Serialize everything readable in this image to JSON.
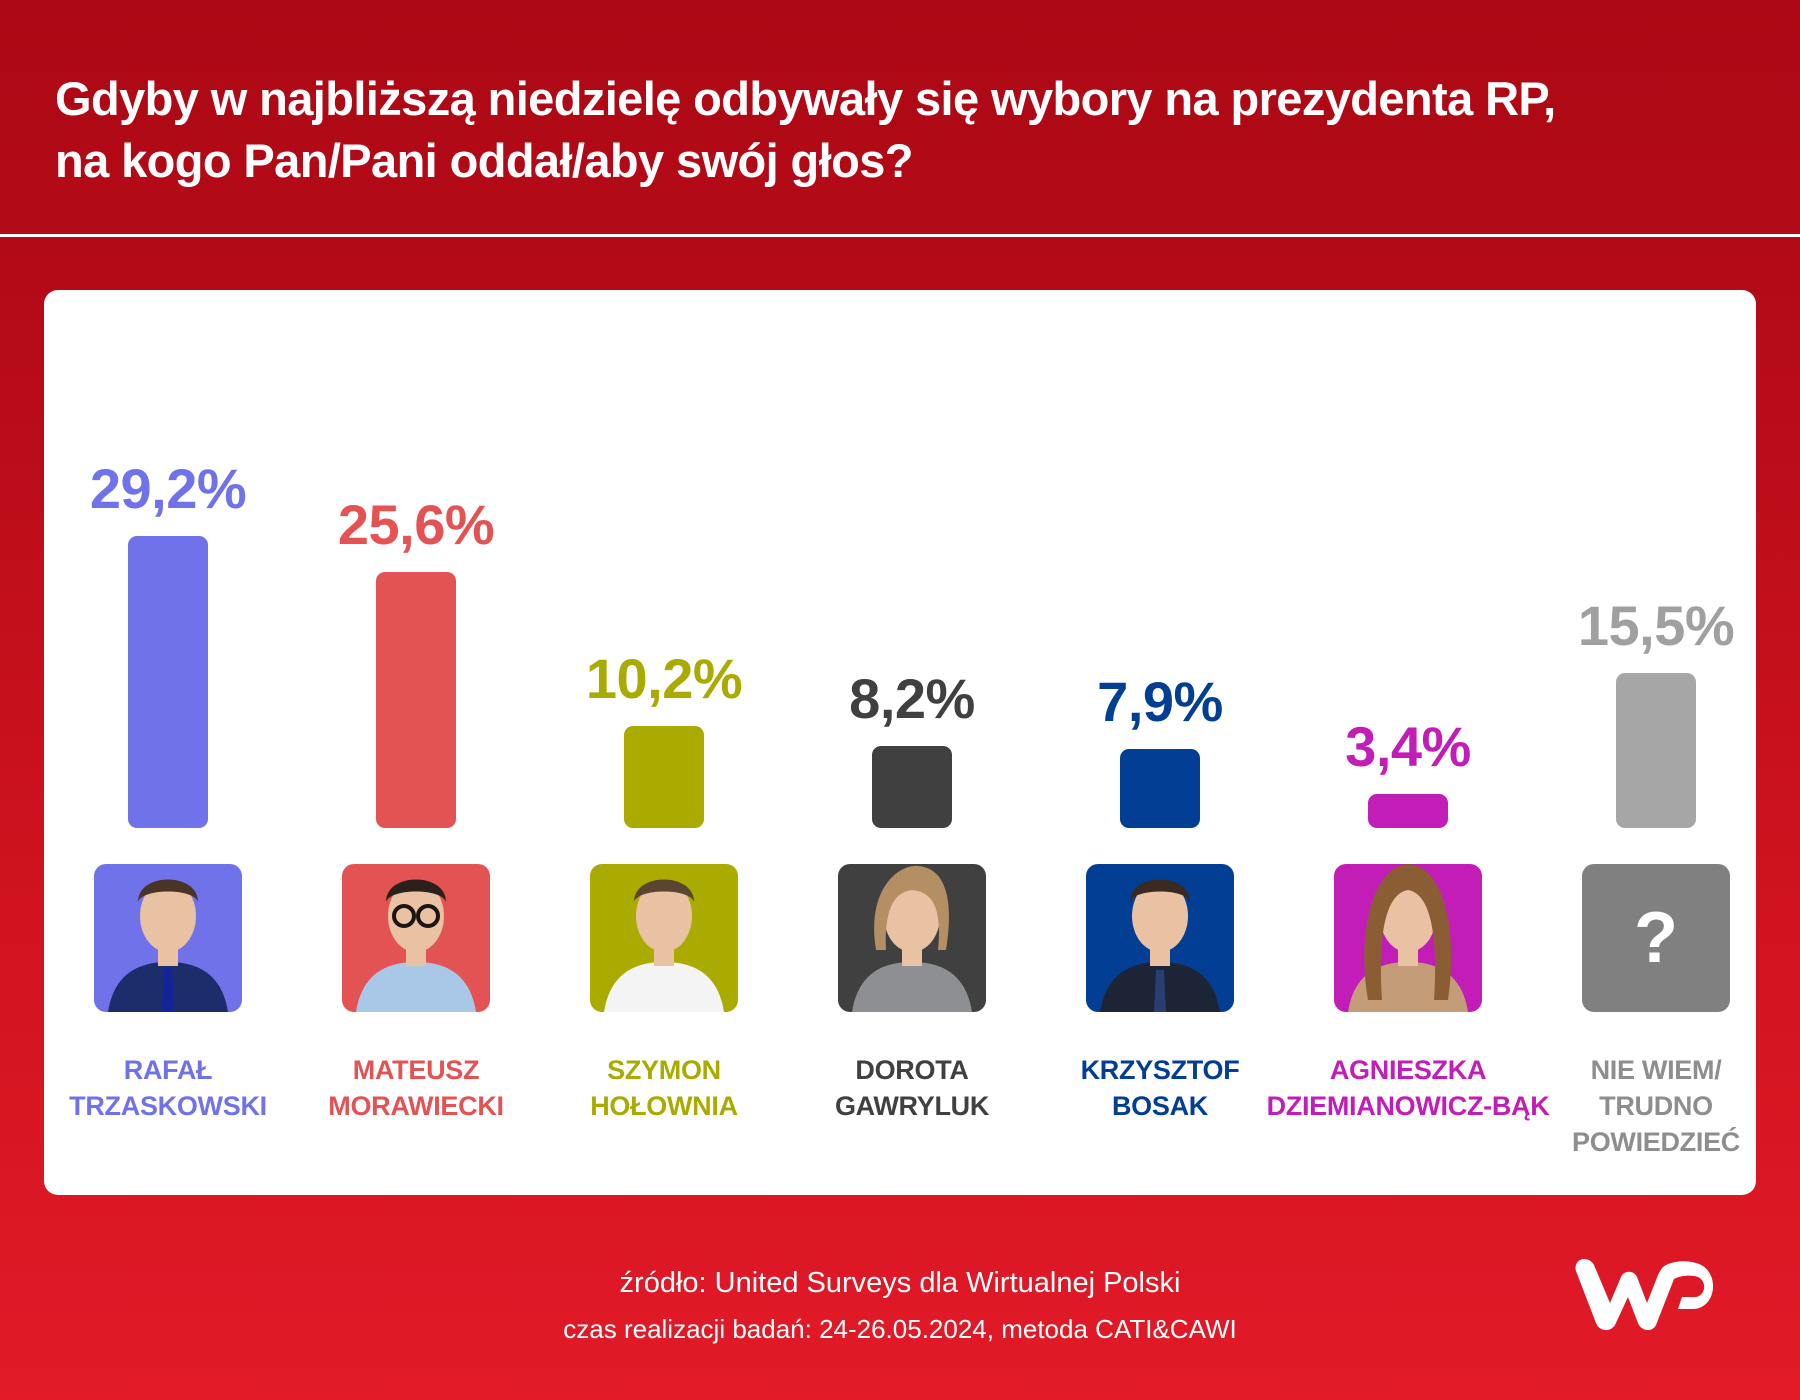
{
  "header": {
    "title_lines": [
      "Gdyby w najbliższą niedzielę odbywały się wybory na prezydenta RP,",
      "na kogo Pan/Pani oddał/aby swój głos?"
    ]
  },
  "footer": {
    "source": "źródło: United Surveys dla Wirtualnej Polski",
    "method": "czas realizacji badań: 24-26.05.2024, metoda CATI&CAWI",
    "logo": "wp-logo"
  },
  "chart_data": {
    "type": "bar",
    "title": "Gdyby w najbliższą niedzielę odbywały się wybory na prezydenta RP, na kogo Pan/Pani oddał/aby swój głos?",
    "xlabel": "",
    "ylabel": "",
    "ylim": [
      0,
      30
    ],
    "grid": false,
    "unit": "%",
    "categories": [
      "Rafał Trzaskowski",
      "Mateusz Morawiecki",
      "Szymon Hołownia",
      "Dorota Gawryluk",
      "Krzysztof Bosak",
      "Agnieszka Dziemianowicz-Bąk",
      "Nie wiem/ trudno powiedzieć"
    ],
    "values": [
      29.2,
      25.6,
      10.2,
      8.2,
      7.9,
      3.4,
      15.5
    ],
    "items": [
      {
        "name_lines": [
          "RAFAŁ",
          "TRZASKOWSKI"
        ],
        "value": 29.2,
        "value_label": "29,2%",
        "color": "#7072ea",
        "label_color": "#7072ea",
        "photo": "portrait-man-suit"
      },
      {
        "name_lines": [
          "MATEUSZ",
          "MORAWIECKI"
        ],
        "value": 25.6,
        "value_label": "25,6%",
        "color": "#e45354",
        "label_color": "#e45354",
        "photo": "portrait-man-glasses"
      },
      {
        "name_lines": [
          "SZYMON",
          "HOŁOWNIA"
        ],
        "value": 10.2,
        "value_label": "10,2%",
        "color": "#a9ab00",
        "label_color": "#a9ab00",
        "photo": "portrait-man-white-shirt"
      },
      {
        "name_lines": [
          "DOROTA",
          "GAWRYLUK"
        ],
        "value": 8.2,
        "value_label": "8,2%",
        "color": "#404040",
        "label_color": "#404040",
        "photo": "portrait-woman-short-hair"
      },
      {
        "name_lines": [
          "KRZYSZTOF",
          "BOSAK"
        ],
        "value": 7.9,
        "value_label": "7,9%",
        "color": "#023f94",
        "label_color": "#023f94",
        "photo": "portrait-man-tie"
      },
      {
        "name_lines": [
          "AGNIESZKA",
          "DZIEMIANOWICZ-BĄK"
        ],
        "value": 3.4,
        "value_label": "3,4%",
        "color": "#c31db7",
        "label_color": "#c31db7",
        "photo": "portrait-woman-long-hair"
      },
      {
        "name_lines": [
          "NIE WIEM/",
          "TRUDNO",
          "POWIEDZIEĆ"
        ],
        "value": 15.5,
        "value_label": "15,5%",
        "color": "#a6a6a6",
        "label_color": "#8e8e8e",
        "photo": "question-mark",
        "photo_color": "#808080",
        "photo_glyph": "?"
      }
    ]
  },
  "colors": {
    "header_bg": "#ae0916",
    "footer_bg": "#e11a28",
    "card_bg": "#ffffff"
  }
}
